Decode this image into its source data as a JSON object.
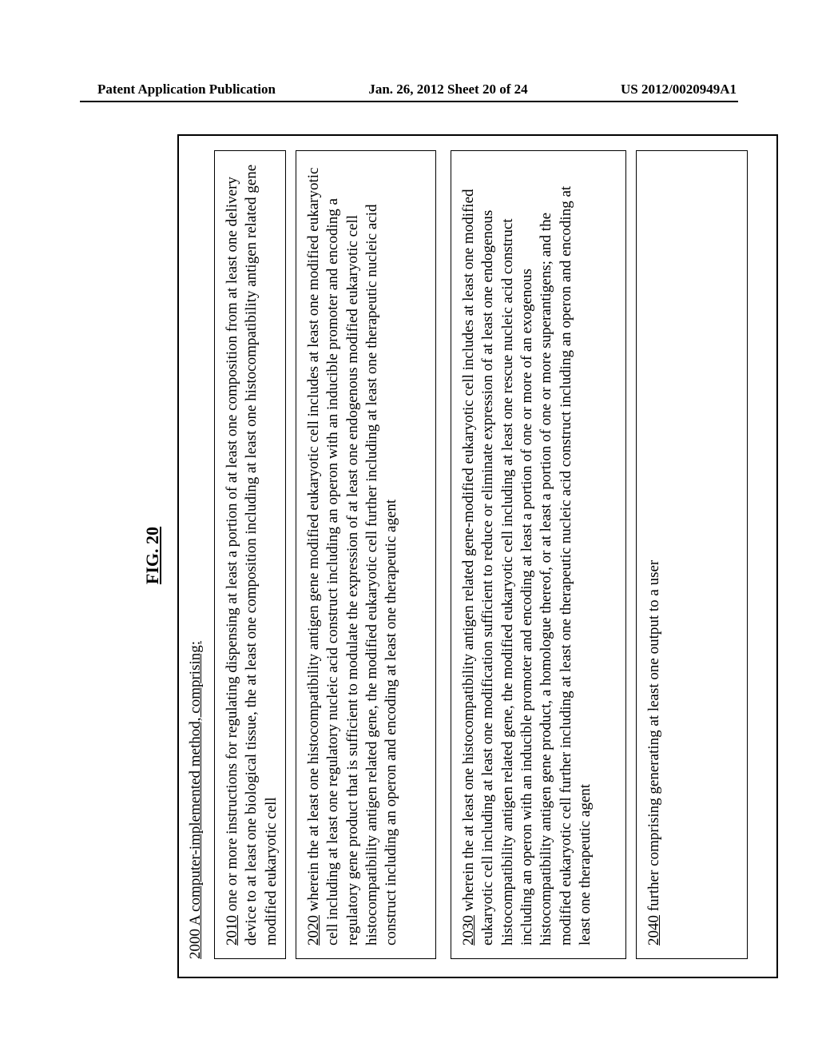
{
  "header": {
    "left": "Patent Application Publication",
    "center": "Jan. 26, 2012  Sheet 20 of 24",
    "right": "US 2012/0020949A1"
  },
  "figure": {
    "title": "FIG. 20",
    "method_num": "2000",
    "method_text": " A computer-implemented method, comprising:",
    "boxes": {
      "b2010": {
        "num": "2010",
        "text": " one or more instructions for regulating dispensing at least a portion of at least one composition from at least one delivery device to at least one biological tissue, the at least one composition including at least one histocompatibility antigen related gene modified eukaryotic cell"
      },
      "b2020": {
        "num": "2020",
        "text": " wherein the at least one histocompatibility antigen gene modified eukaryotic cell includes at least one modified eukaryotic cell including at least one regulatory nucleic acid construct including an operon with an inducible promoter and encoding a regulatory gene product that is sufficient to modulate the expression of at least one endogenous modified eukaryotic cell histocompatibility antigen related gene,\nthe modified eukaryotic cell further including at least one therapeutic nucleic acid construct including an operon and encoding at least one therapeutic agent"
      },
      "b2030": {
        "num": "2030",
        "text": " wherein the at least one histocompatibility antigen related gene-modified eukaryotic cell includes at least one modified eukaryotic cell including at least one modification sufficient to reduce or eliminate expression of at least one endogenous histocompatibility antigen related gene,\nthe modified eukaryotic cell including at least one rescue nucleic acid construct including an operon with an inducible promoter and encoding at least a portion of one or more of an exogenous histocompatibility antigen gene product, a homologue thereof, or at least a portion of one or more superantigens; and\nthe modified eukaryotic cell further including at least one therapeutic nucleic acid construct including an operon and encoding at least one therapeutic agent"
      },
      "b2040": {
        "num": "2040",
        "text": " further comprising generating at least one output to a user"
      }
    }
  },
  "style": {
    "page_bg": "#ffffff",
    "text_color": "#000000",
    "border_color": "#000000",
    "body_fontsize_pt": 14,
    "title_fontsize_pt": 16,
    "header_fontsize_pt": 13
  }
}
